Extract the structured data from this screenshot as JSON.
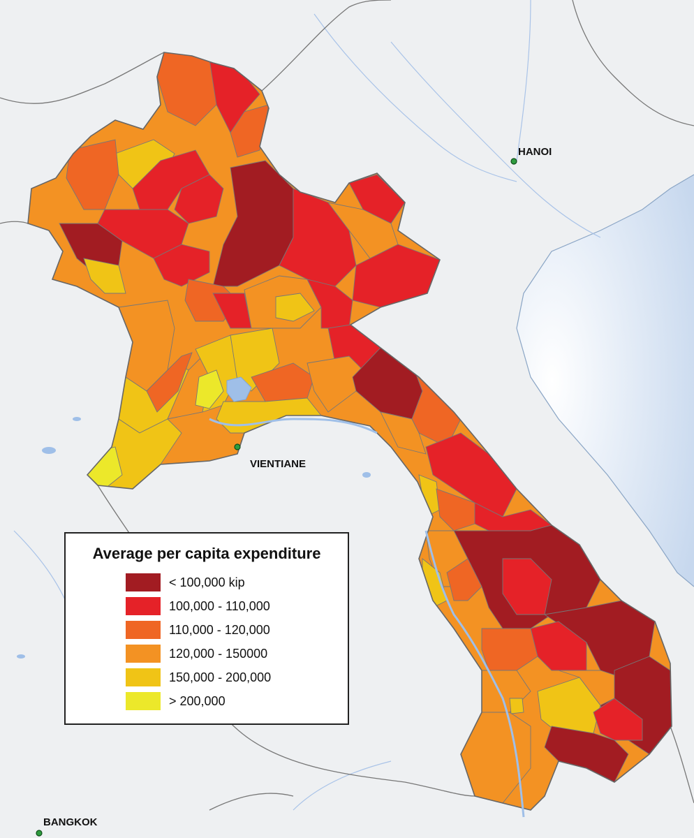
{
  "map": {
    "cities": [
      {
        "id": "hanoi",
        "label": "HANOI"
      },
      {
        "id": "vientiane",
        "label": "VIENTIANE"
      },
      {
        "id": "bangkok",
        "label": "BANGKOK"
      }
    ],
    "colors": {
      "background": "#eef0f2",
      "sea": "#d6e3f2",
      "water": "#9fbfe8",
      "border": "#6e6e6e"
    }
  },
  "legend": {
    "title": "Average per capita expenditure",
    "items": [
      {
        "label": "< 100,000 kip",
        "color": "#a21c22"
      },
      {
        "label": "100,000 - 110,000",
        "color": "#e52228"
      },
      {
        "label": "110,000 - 120,000",
        "color": "#ef6624"
      },
      {
        "label": "120,000 - 150000",
        "color": "#f39223"
      },
      {
        "label": "150,000 - 200,000",
        "color": "#f0c416"
      },
      {
        "label": "> 200,000",
        "color": "#ece82a"
      }
    ]
  }
}
